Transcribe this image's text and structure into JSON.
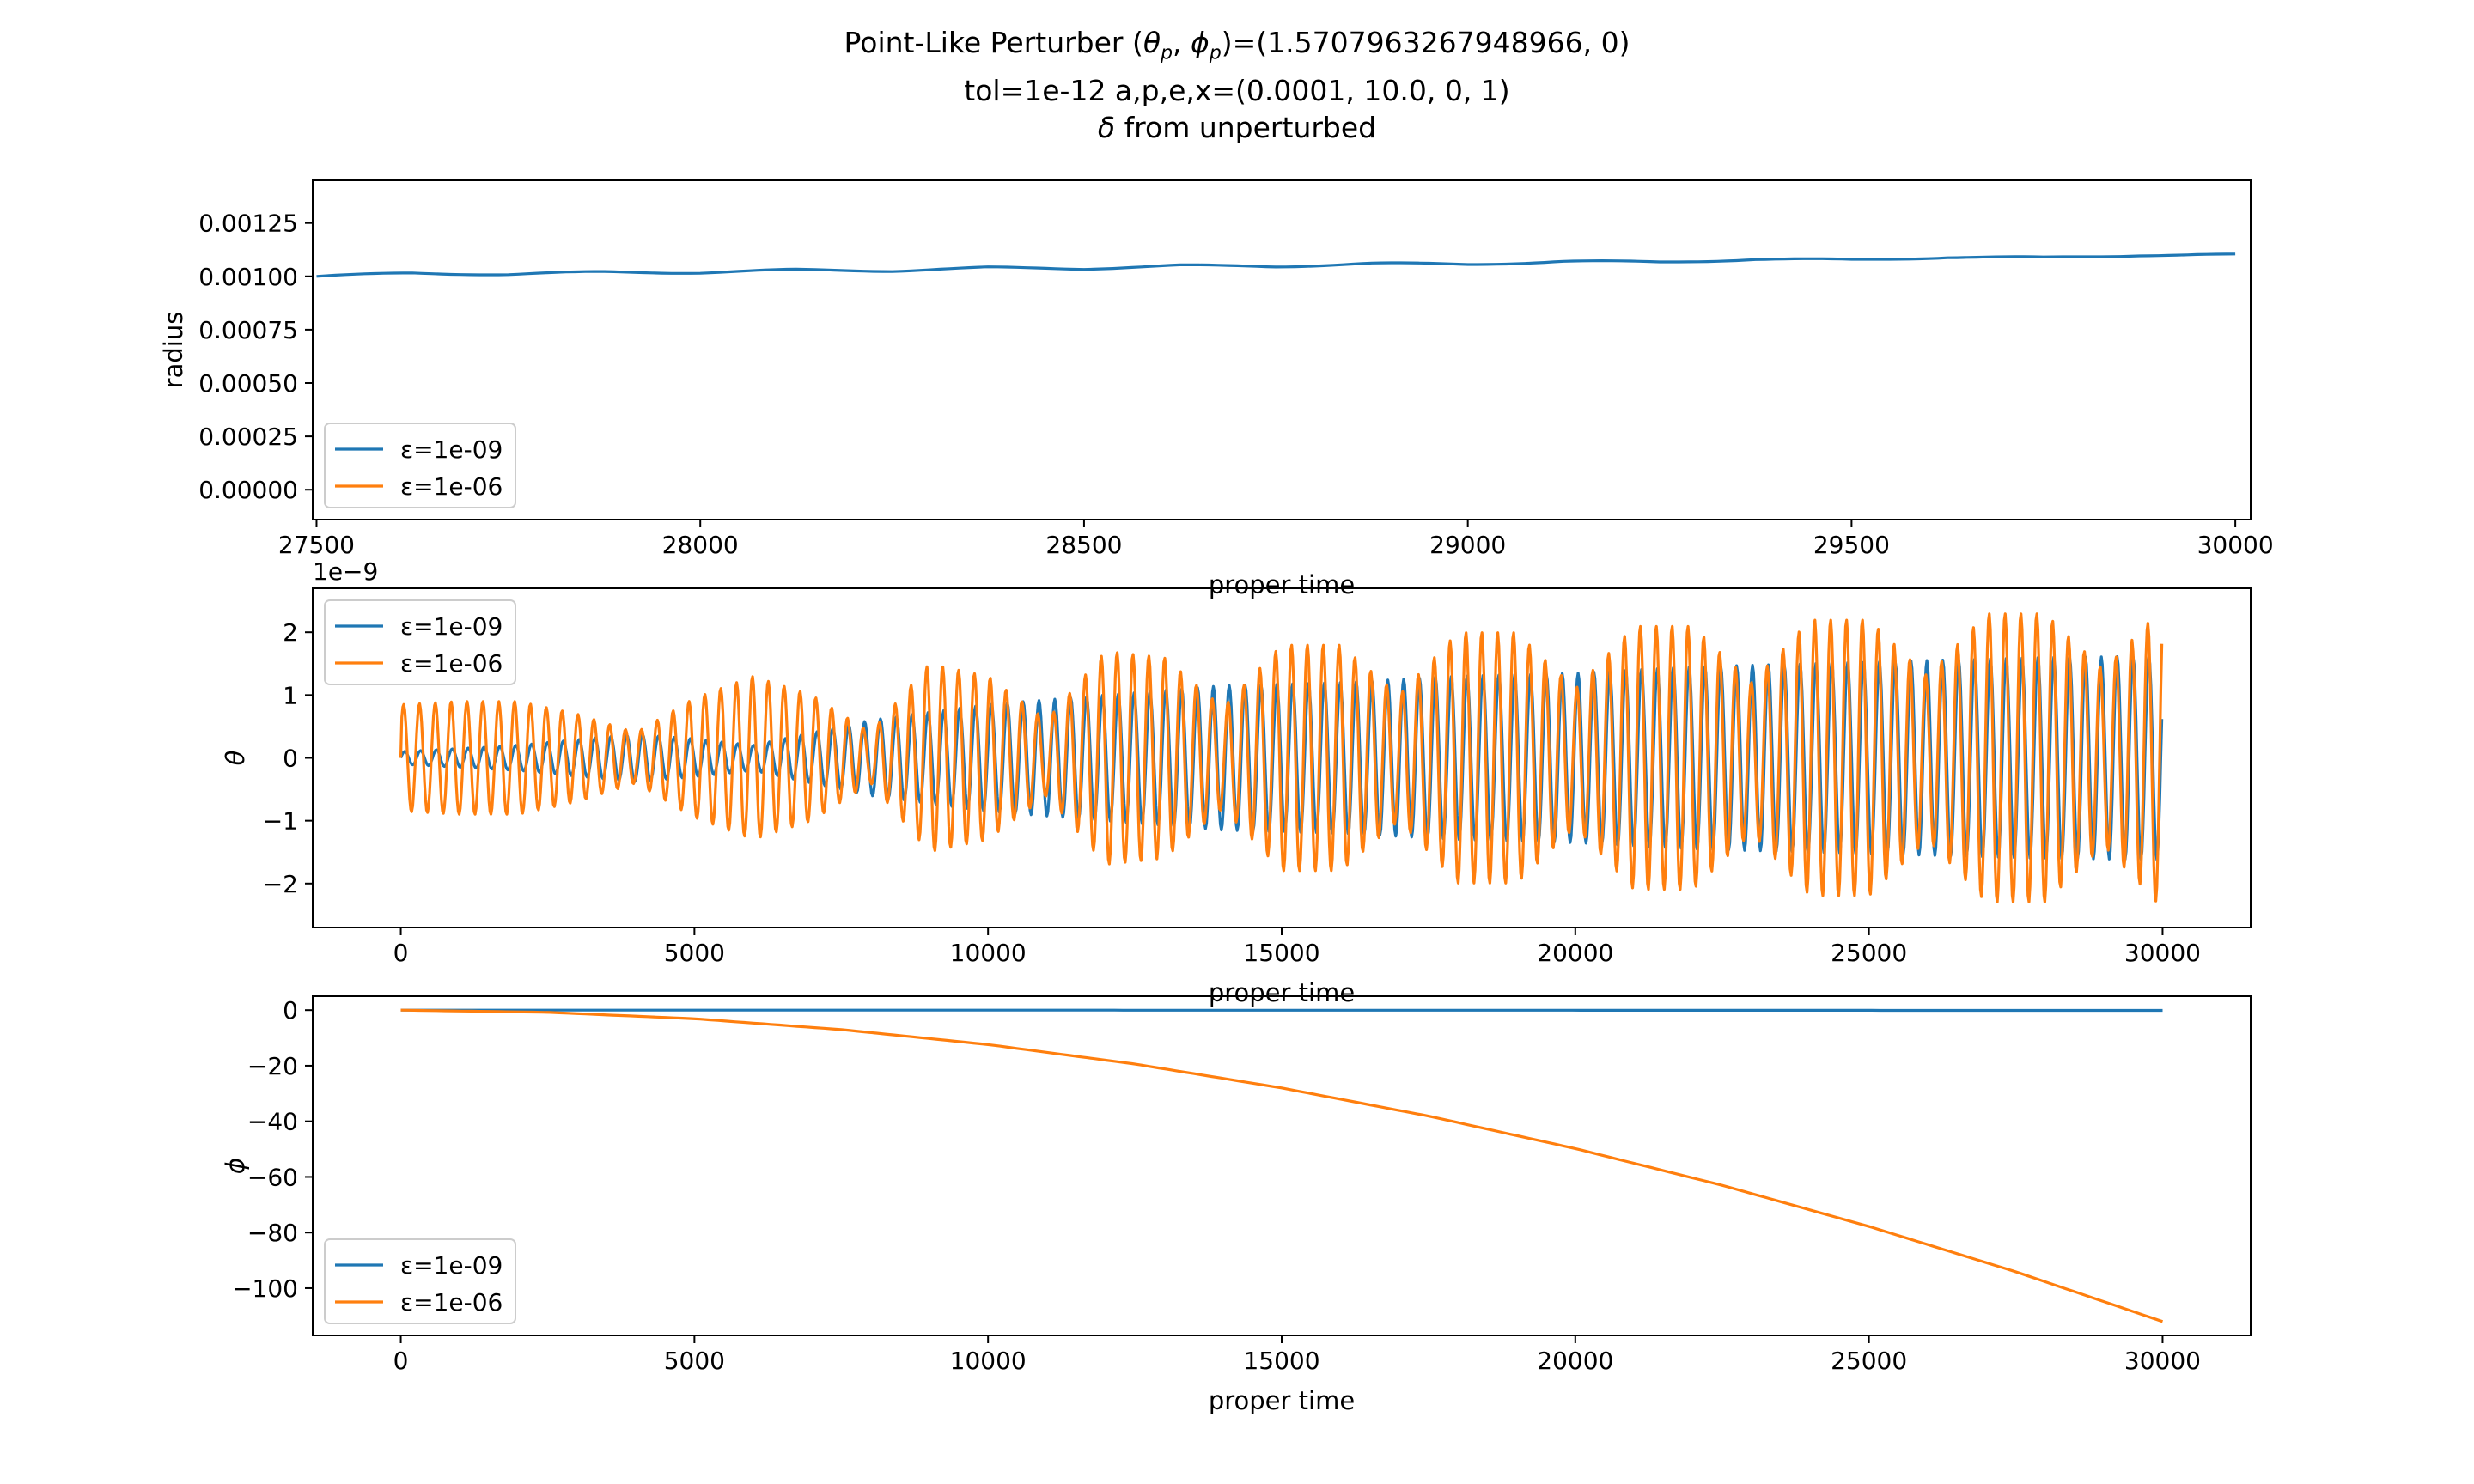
{
  "figure": {
    "title_lines": [
      "Point-Like Perturber (θp, ϕp)=(1.5707963267948966, 0)",
      "tol=1e-12 a,p,e,x=(0.0001, 10.0, 0, 1)",
      "δ from unperturbed"
    ]
  },
  "chart_data": [
    {
      "type": "line",
      "ylabel": "radius",
      "xlabel": "proper time",
      "xlim": [
        27495,
        30020
      ],
      "ylim": [
        -0.00014,
        0.00145
      ],
      "xticks": [
        27500,
        28000,
        28500,
        29000,
        29500,
        30000
      ],
      "xtick_labels": [
        "27500",
        "28000",
        "28500",
        "29000",
        "29500",
        "30000"
      ],
      "yticks": [
        0,
        0.00025,
        0.0005,
        0.00075,
        0.001,
        0.00125
      ],
      "ytick_labels": [
        "0.00000",
        "0.00025",
        "0.00050",
        "0.00075",
        "0.00100",
        "0.00125"
      ],
      "legend": "lower left",
      "series": [
        {
          "name": "ε=1e-09",
          "color": "#1f77b4",
          "x": [
            27500,
            27625,
            27750,
            27875,
            28000,
            28125,
            28250,
            28375,
            28500,
            28625,
            28750,
            28875,
            29000,
            29125,
            29250,
            29375,
            29500,
            29625,
            29750,
            29875,
            30000
          ],
          "y": [
            0.001,
            0.001015,
            0.00101,
            0.00102,
            0.001018,
            0.00103,
            0.001027,
            0.00104,
            0.001037,
            0.00105,
            0.001047,
            0.00106,
            0.001057,
            0.00107,
            0.001067,
            0.00108,
            0.001077,
            0.00109,
            0.001087,
            0.0011,
            0.0011
          ]
        },
        {
          "name": "ε=1e-06",
          "color": "#ff7f0e",
          "x": [],
          "y": []
        }
      ]
    },
    {
      "type": "line",
      "ylabel": "θ",
      "xlabel": "proper time",
      "offset_text": "1e−9",
      "xlim": [
        -1500,
        31500
      ],
      "ylim": [
        -2.7,
        2.7
      ],
      "xticks": [
        0,
        5000,
        10000,
        15000,
        20000,
        25000,
        30000
      ],
      "xtick_labels": [
        "0",
        "5000",
        "10000",
        "15000",
        "20000",
        "25000",
        "30000"
      ],
      "yticks": [
        -2,
        -1,
        0,
        1,
        2
      ],
      "ytick_labels": [
        "−2",
        "−1",
        "0",
        "1",
        "2"
      ],
      "legend": "upper left",
      "oscillation_period": 270,
      "series": [
        {
          "name": "ε=1e-09",
          "color": "#1f77b4",
          "x": [
            0,
            2000,
            4000,
            5000,
            6000,
            8000,
            10000,
            12000,
            14000,
            16000,
            18000,
            20000,
            22000,
            24000,
            26000,
            28000,
            30000
          ],
          "y": [
            0.1,
            0.2,
            0.38,
            0.3,
            0.2,
            0.6,
            0.85,
            1.0,
            1.15,
            1.2,
            1.3,
            1.35,
            1.45,
            1.5,
            1.55,
            1.6,
            1.62
          ]
        },
        {
          "name": "ε=1e-06",
          "color": "#ff7f0e",
          "x": [
            0,
            1000,
            2000,
            3000,
            4000,
            5000,
            6000,
            7000,
            8000,
            9000,
            10000,
            11000,
            12000,
            13000,
            14000,
            15000,
            16000,
            17000,
            18000,
            19000,
            20000,
            21000,
            22000,
            23000,
            24000,
            25000,
            26000,
            27000,
            28000,
            29000,
            30000
          ],
          "y": [
            0.85,
            0.9,
            0.9,
            0.7,
            0.4,
            0.95,
            1.3,
            1.0,
            0.4,
            1.5,
            1.3,
            0.6,
            1.7,
            1.6,
            0.8,
            1.8,
            1.8,
            1.0,
            2.0,
            2.0,
            1.1,
            2.1,
            2.1,
            1.2,
            2.2,
            2.2,
            1.3,
            2.3,
            2.3,
            1.4,
            2.4
          ]
        }
      ]
    },
    {
      "type": "line",
      "ylabel": "ϕ",
      "xlabel": "proper time",
      "xlim": [
        -1500,
        31500
      ],
      "ylim": [
        -117,
        5
      ],
      "xticks": [
        0,
        5000,
        10000,
        15000,
        20000,
        25000,
        30000
      ],
      "xtick_labels": [
        "0",
        "5000",
        "10000",
        "15000",
        "20000",
        "25000",
        "30000"
      ],
      "yticks": [
        0,
        -20,
        -40,
        -60,
        -80,
        -100
      ],
      "ytick_labels": [
        "0",
        "−20",
        "−40",
        "−60",
        "−80",
        "−100"
      ],
      "legend": "lower left",
      "series": [
        {
          "name": "ε=1e-09",
          "color": "#1f77b4",
          "x": [
            0,
            5000,
            10000,
            15000,
            20000,
            25000,
            30000
          ],
          "y": [
            0,
            0,
            -0.01,
            -0.03,
            -0.05,
            -0.08,
            -0.11
          ]
        },
        {
          "name": "ε=1e-06",
          "color": "#ff7f0e",
          "x": [
            0,
            2500,
            5000,
            7500,
            10000,
            12500,
            15000,
            17500,
            20000,
            22500,
            25000,
            27500,
            30000
          ],
          "y": [
            0,
            -0.8,
            -3.1,
            -7,
            -12.4,
            -19.4,
            -28,
            -38.1,
            -49.8,
            -63,
            -77.8,
            -94.1,
            -112
          ]
        }
      ]
    }
  ]
}
